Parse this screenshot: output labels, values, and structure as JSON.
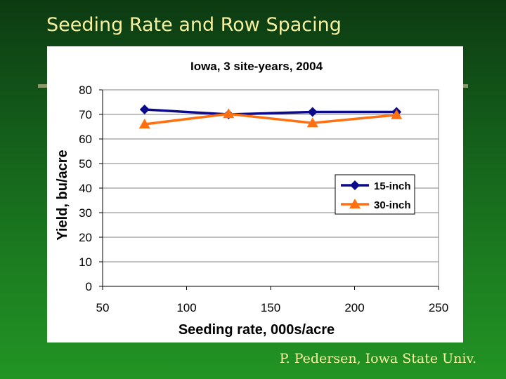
{
  "slide": {
    "title": "Seeding Rate and Row Spacing",
    "footer": "P. Pedersen, Iowa State Univ."
  },
  "colors": {
    "background": "#1a6a1e",
    "title_text": "#f5f0a0",
    "series_15": "#0a0a8a",
    "series_30": "#ff7010",
    "gridline": "#808080"
  },
  "chart_data": {
    "type": "line",
    "title": "Iowa, 3 site-years, 2004",
    "xlabel": "Seeding rate, 000s/acre",
    "ylabel": "Yield, bu/acre",
    "xlim": [
      50,
      250
    ],
    "ylim": [
      0,
      80
    ],
    "x_ticks": [
      50,
      100,
      150,
      200,
      250
    ],
    "y_ticks": [
      0,
      10,
      20,
      30,
      40,
      50,
      60,
      70,
      80
    ],
    "grid": "horizontal",
    "legend_position": "right",
    "series": [
      {
        "name": "15-inch",
        "marker": "diamond",
        "color": "#0a0a8a",
        "x": [
          75,
          125,
          175,
          225
        ],
        "y": [
          72,
          70,
          71,
          71
        ]
      },
      {
        "name": "30-inch",
        "marker": "triangle",
        "color": "#ff7010",
        "x": [
          75,
          125,
          175,
          225
        ],
        "y": [
          66,
          70.2,
          66.5,
          69.8
        ]
      }
    ]
  }
}
